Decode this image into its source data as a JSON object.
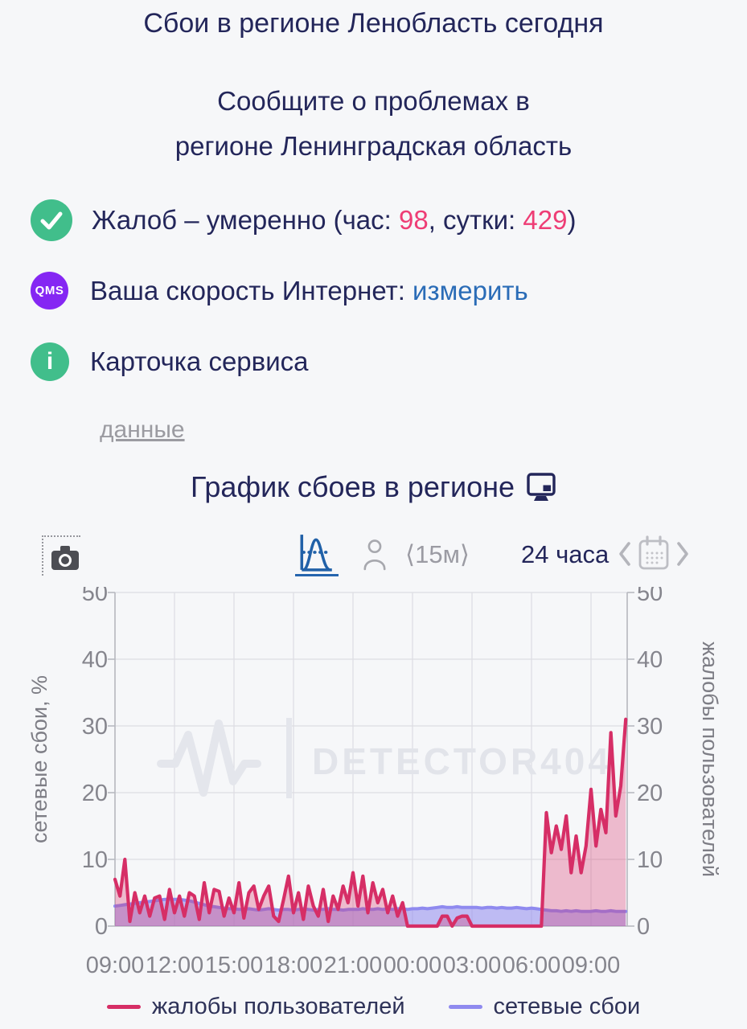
{
  "colors": {
    "page_bg": "#f6f7f9",
    "heading_text": "#23265a",
    "link_blue": "#2a6cb7",
    "alert_pink": "#ee3d75",
    "badge_green": "#41be8b",
    "badge_purple": "#8527f3",
    "muted_gray": "#9b9ba1",
    "grid_line": "#dddde3",
    "toolbar_active_blue": "#2565ae"
  },
  "header": {
    "title": "Сбои в регионе Ленобласть сегодня",
    "subtitle_line1": "Сообщите о проблемах в",
    "subtitle_line2": "регионе Ленинградская область"
  },
  "status": {
    "complaints": {
      "prefix": "Жалоб – умеренно (час: ",
      "hour_value": "98",
      "mid": ", сутки: ",
      "day_value": "429",
      "suffix": ")"
    },
    "speed": {
      "badge": "QMS",
      "label": "Ваша скорость Интернет:",
      "link": "измерить"
    },
    "service": {
      "link": "Карточка сервиса"
    },
    "data_link": "данные"
  },
  "chart_header": {
    "title": "График сбоев в регионе"
  },
  "toolbar": {
    "screenshot_icon": "camera",
    "distribution_icon": "bell-curve",
    "users_icon": "person",
    "interval": "⟨15м⟩",
    "range": "24 часа",
    "prev_icon": "chevron-left",
    "calendar_icon": "calendar",
    "next_icon": "chevron-right"
  },
  "chart_data": {
    "type": "area",
    "title": "График сбоев в регионе",
    "watermark": "DETECTOR404",
    "interval_minutes": 15,
    "x_start": "09:00",
    "x_tick_step_hours": 3,
    "x_tick_labels": [
      "09:00",
      "12:00",
      "15:00",
      "18:00",
      "21:00",
      "00:00",
      "03:00",
      "06:00",
      "09:00"
    ],
    "ylim": [
      0,
      50
    ],
    "y_ticks": [
      0,
      10,
      20,
      30,
      40,
      50
    ],
    "y_left_label": "сетевые сбои, %",
    "y_right_label": "жалобы пользователей",
    "grid": true,
    "legend_position": "bottom",
    "series": [
      {
        "name": "жалобы пользователей",
        "axis": "right",
        "color": "#d62e66",
        "fill": "rgba(214,46,102,0.30)",
        "width": 4.2,
        "values": [
          7,
          4.5,
          10,
          0.7,
          5,
          2,
          4.5,
          1.5,
          4.2,
          4.5,
          1,
          5.5,
          2,
          4.5,
          1.5,
          5,
          4.5,
          1,
          6.5,
          2,
          5.5,
          5.2,
          1.5,
          4.2,
          2,
          6.5,
          1.2,
          5,
          6,
          2.5,
          4.5,
          6,
          1.5,
          0.7,
          4,
          7.5,
          2,
          5,
          1,
          6,
          3,
          1.5,
          5.5,
          0.7,
          4.5,
          2.5,
          6,
          3.5,
          8,
          3,
          7.5,
          2,
          6.5,
          3.5,
          5.5,
          2,
          4.5,
          1.5,
          3.5,
          0,
          0,
          0,
          0,
          0,
          0,
          0,
          1.5,
          1.5,
          0,
          1.2,
          1.5,
          1.5,
          0,
          0,
          0,
          0,
          0,
          0,
          0,
          0,
          0,
          0,
          0,
          0,
          0,
          0,
          0,
          17,
          11,
          15,
          11.5,
          16.5,
          8,
          13.5,
          8,
          12,
          20.5,
          12,
          17.5,
          14,
          29,
          16.5,
          21,
          31
        ]
      },
      {
        "name": "сетевые сбои",
        "axis": "left",
        "color": "#8f8aef",
        "fill": "rgba(143,138,239,0.55)",
        "width": 4,
        "values": [
          3,
          3.1,
          3.2,
          3.3,
          3.4,
          3.5,
          3.6,
          3.7,
          3.8,
          3.9,
          4,
          4,
          4,
          4,
          3.9,
          3.8,
          3.6,
          3.4,
          3.2,
          3,
          2.9,
          2.8,
          2.7,
          2.6,
          2.6,
          2.5,
          2.5,
          2.6,
          2.5,
          2.4,
          2.5,
          2.6,
          2.5,
          2.4,
          2.5,
          2.5,
          2.4,
          2.5,
          2.6,
          2.5,
          2.4,
          2.5,
          2.5,
          2.6,
          2.5,
          2.5,
          2.4,
          2.5,
          2.5,
          2.5,
          2.6,
          2.5,
          2.5,
          2.6,
          2.5,
          2.6,
          2.5,
          2.6,
          2.6,
          2.5,
          2.6,
          2.6,
          2.7,
          2.6,
          2.7,
          2.8,
          2.9,
          2.8,
          2.8,
          2.9,
          2.8,
          2.8,
          2.8,
          2.8,
          2.7,
          2.8,
          2.8,
          2.7,
          2.8,
          2.7,
          2.7,
          2.8,
          2.7,
          2.6,
          2.7,
          2.6,
          2.5,
          2.4,
          2.3,
          2.3,
          2.2,
          2.3,
          2.2,
          2.3,
          2.2,
          2.2,
          2.2,
          2.3,
          2.2,
          2.2,
          2.3,
          2.2,
          2.2,
          2.2
        ]
      }
    ]
  }
}
